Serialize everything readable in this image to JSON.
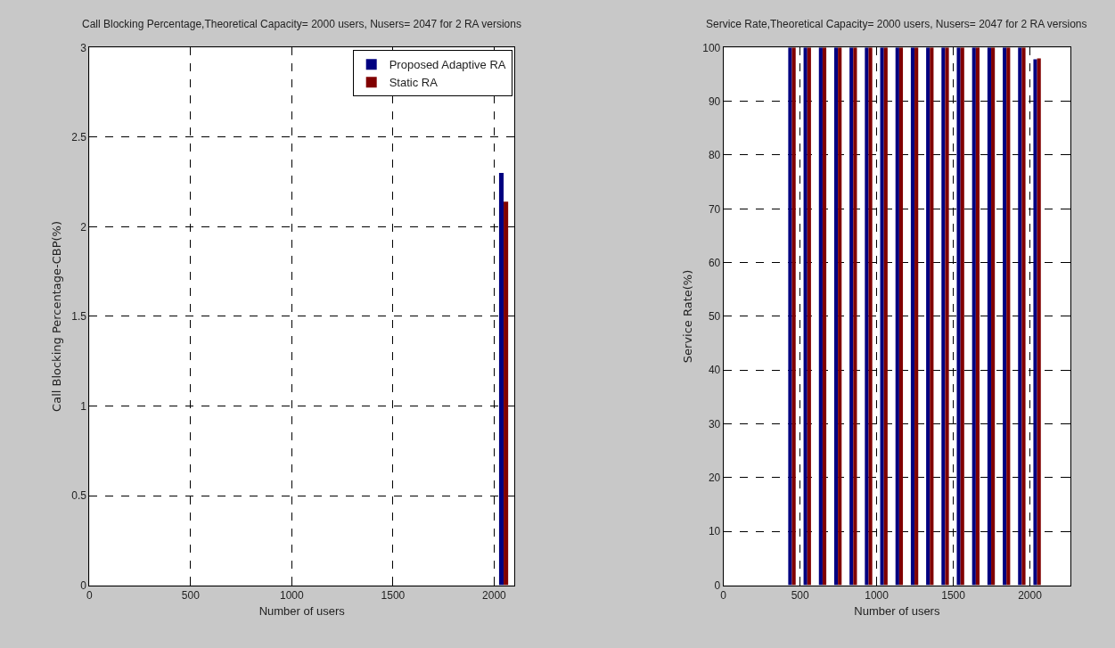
{
  "chart_data": [
    {
      "type": "bar",
      "title": "Call Blocking Percentage,Theoretical Capacity= 2000 users, Nusers= 2047 for 2 RA versions",
      "xlabel": "Number of users",
      "ylabel": "Call Blocking Percentage-CBP(%)",
      "x": [
        2047
      ],
      "series": [
        {
          "name": "Proposed Adaptive RA",
          "color": "#000080",
          "values": [
            2.3
          ]
        },
        {
          "name": "Static RA",
          "color": "#800000",
          "values": [
            2.14
          ]
        }
      ],
      "xlim": [
        0,
        2100
      ],
      "xticks": [
        0,
        500,
        1000,
        1500,
        2000
      ],
      "ylim": [
        0,
        3
      ],
      "yticks": [
        0,
        0.5,
        1,
        1.5,
        2,
        2.5,
        3
      ],
      "grid": true,
      "legend": "top right"
    },
    {
      "type": "bar",
      "title": "Service Rate,Theoretical Capacity= 2000 users, Nusers= 2047 for 2 RA versions",
      "xlabel": "Number of users",
      "ylabel": "Service Rate(%)",
      "x": [
        447,
        547,
        647,
        747,
        847,
        947,
        1047,
        1147,
        1247,
        1347,
        1447,
        1547,
        1647,
        1747,
        1847,
        1947,
        2047
      ],
      "series": [
        {
          "color": "#000080",
          "values": [
            100,
            100,
            100,
            100,
            100,
            100,
            100,
            100,
            100,
            100,
            100,
            100,
            100,
            100,
            100,
            100,
            97.8
          ]
        },
        {
          "color": "#800000",
          "values": [
            100,
            100,
            100,
            100,
            100,
            100,
            100,
            100,
            100,
            100,
            100,
            100,
            100,
            100,
            100,
            100,
            98
          ]
        }
      ],
      "xlim": [
        0,
        2265
      ],
      "xticks": [
        0,
        500,
        1000,
        1500,
        2000
      ],
      "ylim": [
        0,
        100
      ],
      "yticks": [
        0,
        10,
        20,
        30,
        40,
        50,
        60,
        70,
        80,
        90,
        100
      ],
      "grid": true,
      "legend": false
    }
  ]
}
